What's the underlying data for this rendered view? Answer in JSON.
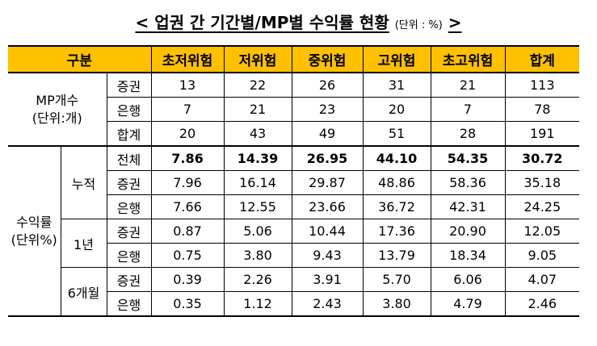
{
  "title": {
    "text": "< 업권 간 기간별/MP별 수익률 현황",
    "unit": "(단위 : %)",
    "close": ">"
  },
  "header": {
    "group": "구분",
    "columns": [
      "초저위험",
      "저위험",
      "중위험",
      "고위험",
      "초고위험",
      "합계"
    ]
  },
  "mp_count": {
    "label_line1": "MP개수",
    "label_line2": "(단위:개)",
    "rows": [
      {
        "sub": "증권",
        "values": [
          "13",
          "22",
          "26",
          "31",
          "21",
          "113"
        ]
      },
      {
        "sub": "은행",
        "values": [
          "7",
          "21",
          "23",
          "20",
          "7",
          "78"
        ]
      },
      {
        "sub": "합계",
        "values": [
          "20",
          "43",
          "49",
          "51",
          "28",
          "191"
        ]
      }
    ]
  },
  "returns": {
    "label_line1": "수익률",
    "label_line2": "(단위%)",
    "cumulative": {
      "label": "누적",
      "rows": [
        {
          "sub": "전체",
          "values": [
            "7.86",
            "14.39",
            "26.95",
            "44.10",
            "54.35",
            "30.72"
          ]
        },
        {
          "sub": "증권",
          "values": [
            "7.96",
            "16.14",
            "29.87",
            "48.86",
            "58.36",
            "35.18"
          ]
        },
        {
          "sub": "은행",
          "values": [
            "7.66",
            "12.55",
            "23.66",
            "36.72",
            "42.31",
            "24.25"
          ]
        }
      ]
    },
    "one_year": {
      "label": "1년",
      "rows": [
        {
          "sub": "증권",
          "values": [
            "0.87",
            "5.06",
            "10.44",
            "17.36",
            "20.90",
            "12.05"
          ]
        },
        {
          "sub": "은행",
          "values": [
            "0.75",
            "3.80",
            "9.43",
            "13.79",
            "18.34",
            "9.05"
          ]
        }
      ]
    },
    "six_month": {
      "label": "6개월",
      "rows": [
        {
          "sub": "증권",
          "values": [
            "0.39",
            "2.26",
            "3.91",
            "5.70",
            "6.06",
            "4.07"
          ]
        },
        {
          "sub": "은행",
          "values": [
            "0.35",
            "1.12",
            "2.43",
            "3.80",
            "4.79",
            "2.46"
          ]
        }
      ]
    }
  }
}
